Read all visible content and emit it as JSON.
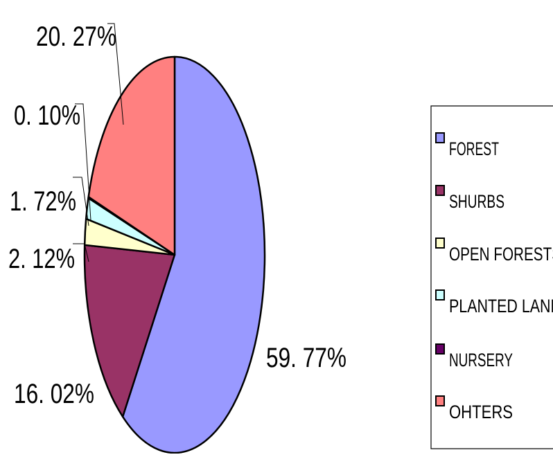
{
  "chart_data": {
    "type": "pie",
    "categories": [
      "FOREST",
      "SHURBS",
      "OPEN FORESTS",
      "PLANTED LAND",
      "NURSERY",
      "OHTERS"
    ],
    "values": [
      59.77,
      16.02,
      2.12,
      1.72,
      0.1,
      20.27
    ],
    "data_labels": [
      "59. 77%",
      "16. 02%",
      "2. 12%",
      "1. 72%",
      "0. 10%",
      "20. 27%"
    ],
    "colors": [
      "#9999ff",
      "#993366",
      "#ffffcc",
      "#ccffff",
      "#660066",
      "#ff8080"
    ],
    "legend_position": "right",
    "start_angle_deg": 0,
    "direction": "clockwise"
  }
}
